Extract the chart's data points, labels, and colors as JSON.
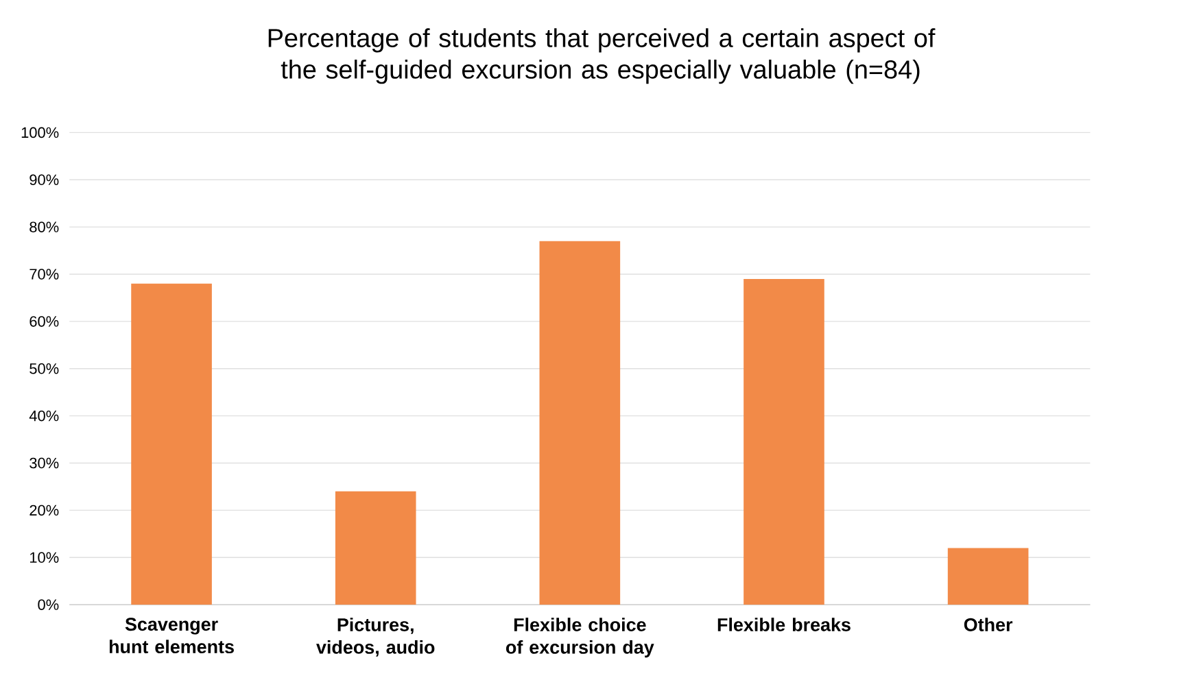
{
  "chart_data": {
    "type": "bar",
    "title": "Percentage of students that perceived a certain aspect of the self-guided excursion as especially valuable (n=84)",
    "categories": [
      "Scavenger hunt elements",
      "Pictures, videos, audio",
      "Flexible choice of excursion day",
      "Flexible breaks",
      "Other"
    ],
    "values": [
      68,
      24,
      77,
      69,
      12
    ],
    "color": "#f28a48",
    "ylim": [
      0,
      100
    ],
    "yticks": [
      {
        "value": 0,
        "label": "0%"
      },
      {
        "value": 10,
        "label": "10%"
      },
      {
        "value": 20,
        "label": "20%"
      },
      {
        "value": 30,
        "label": "30%"
      },
      {
        "value": 40,
        "label": "40%"
      },
      {
        "value": 50,
        "label": "50%"
      },
      {
        "value": 60,
        "label": "60%"
      },
      {
        "value": 70,
        "label": "70%"
      },
      {
        "value": 80,
        "label": "80%"
      },
      {
        "value": 90,
        "label": "90%"
      },
      {
        "value": 100,
        "label": "100%"
      }
    ],
    "grid": "y"
  }
}
